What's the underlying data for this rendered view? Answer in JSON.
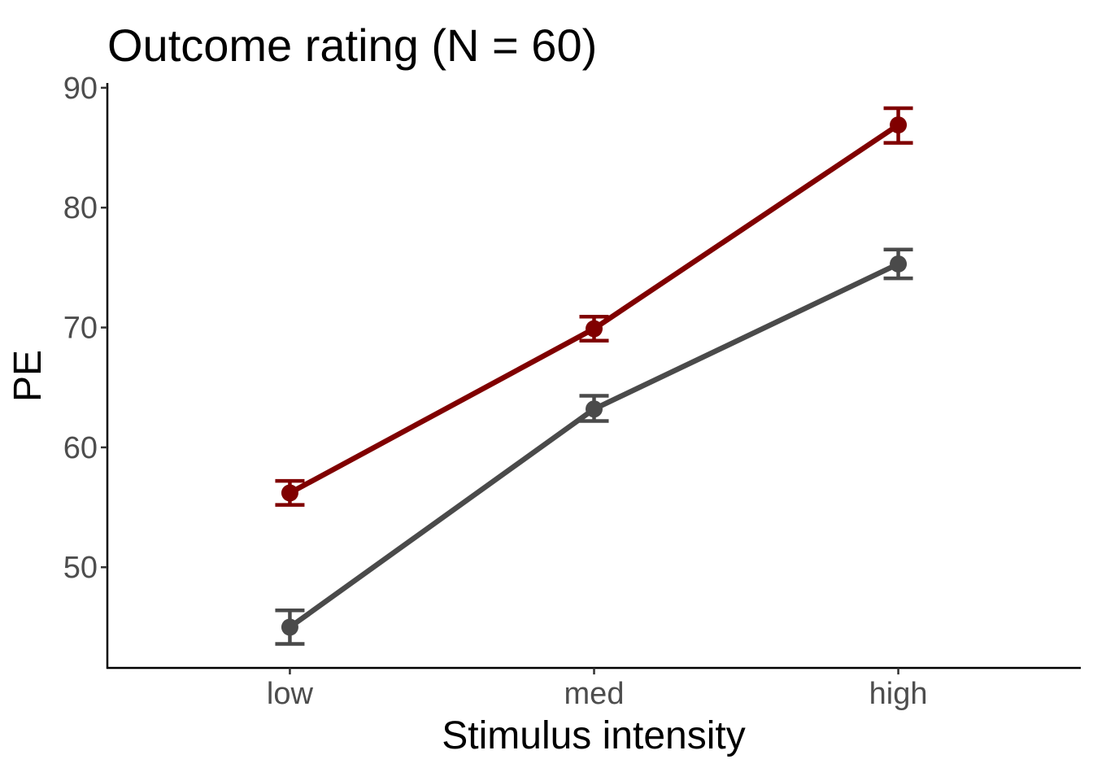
{
  "chart_data": {
    "type": "line",
    "title": "Outcome rating  (N = 60)",
    "xlabel": "Stimulus intensity",
    "ylabel": "PE",
    "categories": [
      "low",
      "med",
      "high"
    ],
    "y_ticks": [
      50,
      60,
      70,
      80,
      90
    ],
    "ylim": [
      41.6,
      90.4
    ],
    "grid": false,
    "legend": "none",
    "series": [
      {
        "color": "#800000",
        "values": [
          56.2,
          69.9,
          86.9
        ],
        "error_low": [
          55.2,
          68.9,
          85.4
        ],
        "error_high": [
          57.2,
          70.9,
          88.3
        ]
      },
      {
        "color": "#4a4a4a",
        "values": [
          45.0,
          63.2,
          75.3
        ],
        "error_low": [
          43.6,
          62.2,
          74.1
        ],
        "error_high": [
          46.4,
          64.3,
          76.5
        ]
      }
    ]
  }
}
